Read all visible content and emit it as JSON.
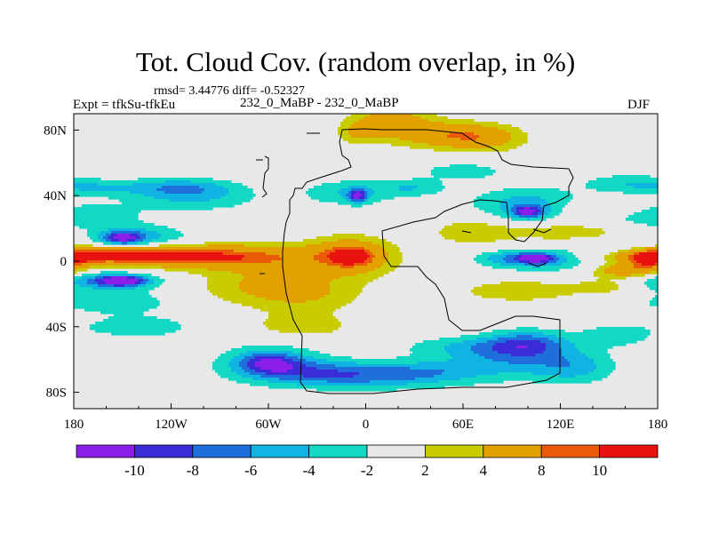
{
  "chart_data": {
    "type": "heatmap",
    "title": "Tot. Cloud Cov. (random overlap, in %)",
    "stats_line": "rmsd= 3.44776 diff= -0.52327",
    "experiment_label": "Expt = tfkSu-tfkEu",
    "period_label": "232_0_MaBP - 232_0_MaBP",
    "season_label": "DJF",
    "x_axis": {
      "range": [
        -180,
        180
      ],
      "ticks": [
        {
          "value": -180,
          "label": "180"
        },
        {
          "value": -120,
          "label": "120W"
        },
        {
          "value": -60,
          "label": "60W"
        },
        {
          "value": 0,
          "label": "0"
        },
        {
          "value": 60,
          "label": "60E"
        },
        {
          "value": 120,
          "label": "120E"
        },
        {
          "value": 180,
          "label": "180"
        }
      ]
    },
    "y_axis": {
      "range": [
        -90,
        90
      ],
      "ticks": [
        {
          "value": 80,
          "label": "80N"
        },
        {
          "value": 40,
          "label": "40N"
        },
        {
          "value": 0,
          "label": "0"
        },
        {
          "value": -40,
          "label": "40S"
        },
        {
          "value": -80,
          "label": "80S"
        }
      ]
    },
    "colorbar": {
      "labels": [
        "-10",
        "-8",
        "-6",
        "-4",
        "-2",
        "2",
        "4",
        "8",
        "10"
      ],
      "colors": [
        "#8c1eeb",
        "#3b2cd9",
        "#1e6fdb",
        "#10b4e2",
        "#12d8c4",
        "#e8e8e8",
        "#c8cc00",
        "#e3a100",
        "#ea5a0a",
        "#e8120e"
      ]
    },
    "field_blobs": [
      {
        "lon": -180,
        "lat": 4,
        "rlon": 40,
        "rlat": 5,
        "v": 7
      },
      {
        "lon": -140,
        "lat": 3,
        "rlon": 45,
        "rlat": 6,
        "v": 7
      },
      {
        "lon": -100,
        "lat": 3,
        "rlon": 45,
        "rlat": 7,
        "v": 6
      },
      {
        "lon": -60,
        "lat": 2,
        "rlon": 40,
        "rlat": 8,
        "v": 5
      },
      {
        "lon": -10,
        "lat": 3,
        "rlon": 28,
        "rlat": 12,
        "v": 7
      },
      {
        "lon": -8,
        "lat": 3,
        "rlon": 14,
        "rlat": 6,
        "v": 6
      },
      {
        "lon": 175,
        "lat": 0,
        "rlon": 15,
        "rlat": 6,
        "v": 7
      },
      {
        "lon": -70,
        "lat": -15,
        "rlon": 40,
        "rlat": 12,
        "v": 3.5
      },
      {
        "lon": -35,
        "lat": -20,
        "rlon": 35,
        "rlat": 12,
        "v": 3.5
      },
      {
        "lon": -40,
        "lat": -40,
        "rlon": 35,
        "rlat": 8,
        "v": 3
      },
      {
        "lon": 15,
        "lat": 85,
        "rlon": 25,
        "rlat": 10,
        "v": 6
      },
      {
        "lon": 50,
        "lat": 77,
        "rlon": 30,
        "rlat": 8,
        "v": 6
      },
      {
        "lon": 75,
        "lat": 75,
        "rlon": 25,
        "rlat": 8,
        "v": 4.5
      },
      {
        "lon": -5,
        "lat": 78,
        "rlon": 12,
        "rlat": 6,
        "v": 3.5
      },
      {
        "lon": 65,
        "lat": 18,
        "rlon": 25,
        "rlat": 8,
        "v": 3.5
      },
      {
        "lon": 125,
        "lat": 18,
        "rlon": 40,
        "rlat": 6,
        "v": 3.5
      },
      {
        "lon": 95,
        "lat": -18,
        "rlon": 40,
        "rlat": 7,
        "v": 3.5
      },
      {
        "lon": 150,
        "lat": -15,
        "rlon": 20,
        "rlat": 5,
        "v": 3
      },
      {
        "lon": 160,
        "lat": -6,
        "rlon": 20,
        "rlat": 4,
        "v": 6.5
      },
      {
        "lon": 145,
        "lat": 32,
        "rlon": 30,
        "rlat": 6,
        "v": 3
      },
      {
        "lon": -180,
        "lat": 28,
        "rlon": 40,
        "rlat": 8,
        "v": -4
      },
      {
        "lon": -140,
        "lat": 15,
        "rlon": 30,
        "rlat": 7,
        "v": -5
      },
      {
        "lon": -150,
        "lat": 14,
        "rlon": 12,
        "rlat": 4,
        "v": -8
      },
      {
        "lon": -160,
        "lat": -12,
        "rlon": 35,
        "rlat": 6,
        "v": -6
      },
      {
        "lon": -150,
        "lat": -12,
        "rlon": 14,
        "rlat": 3,
        "v": -9
      },
      {
        "lon": -155,
        "lat": -25,
        "rlon": 40,
        "rlat": 7,
        "v": -3.5
      },
      {
        "lon": -105,
        "lat": 38,
        "rlon": 40,
        "rlat": 8,
        "v": -3.5
      },
      {
        "lon": -115,
        "lat": 45,
        "rlon": 35,
        "rlat": 6,
        "v": -5
      },
      {
        "lon": -170,
        "lat": 45,
        "rlon": 30,
        "rlat": 5,
        "v": -3
      },
      {
        "lon": -140,
        "lat": -40,
        "rlon": 35,
        "rlat": 7,
        "v": -3.5
      },
      {
        "lon": -60,
        "lat": -60,
        "rlon": 35,
        "rlat": 12,
        "v": -3.5
      },
      {
        "lon": -60,
        "lat": -62,
        "rlon": 18,
        "rlat": 6,
        "v": -6
      },
      {
        "lon": -40,
        "lat": -68,
        "rlon": 40,
        "rlat": 8,
        "v": -5
      },
      {
        "lon": 0,
        "lat": -70,
        "rlon": 40,
        "rlat": 8,
        "v": -5
      },
      {
        "lon": 40,
        "lat": -68,
        "rlon": 35,
        "rlat": 8,
        "v": -4
      },
      {
        "lon": 90,
        "lat": -60,
        "rlon": 40,
        "rlat": 12,
        "v": -5
      },
      {
        "lon": 100,
        "lat": -50,
        "rlon": 25,
        "rlat": 8,
        "v": -6
      },
      {
        "lon": 130,
        "lat": -65,
        "rlon": 25,
        "rlat": 10,
        "v": -4
      },
      {
        "lon": 60,
        "lat": -52,
        "rlon": 40,
        "rlat": 6,
        "v": -3
      },
      {
        "lon": -10,
        "lat": 42,
        "rlon": 30,
        "rlat": 8,
        "v": -4
      },
      {
        "lon": -5,
        "lat": 40,
        "rlon": 6,
        "rlat": 4,
        "v": -8
      },
      {
        "lon": 30,
        "lat": 45,
        "rlon": 20,
        "rlat": 5,
        "v": -3.5
      },
      {
        "lon": 100,
        "lat": 35,
        "rlon": 35,
        "rlat": 10,
        "v": -5
      },
      {
        "lon": 100,
        "lat": 30,
        "rlon": 10,
        "rlat": 4,
        "v": -8
      },
      {
        "lon": 110,
        "lat": 0,
        "rlon": 30,
        "rlat": 6,
        "v": -5
      },
      {
        "lon": 105,
        "lat": 2,
        "rlon": 12,
        "rlat": 3,
        "v": -8
      },
      {
        "lon": 85,
        "lat": 2,
        "rlon": 20,
        "rlat": 5,
        "v": -3.5
      },
      {
        "lon": 150,
        "lat": 8,
        "rlon": 30,
        "rlat": 5,
        "v": -3.5
      },
      {
        "lon": 160,
        "lat": 48,
        "rlon": 30,
        "rlat": 6,
        "v": -3
      },
      {
        "lon": 60,
        "lat": 55,
        "rlon": 30,
        "rlat": 6,
        "v": -3
      },
      {
        "lon": 155,
        "lat": -45,
        "rlon": 25,
        "rlat": 8,
        "v": -3
      }
    ]
  }
}
